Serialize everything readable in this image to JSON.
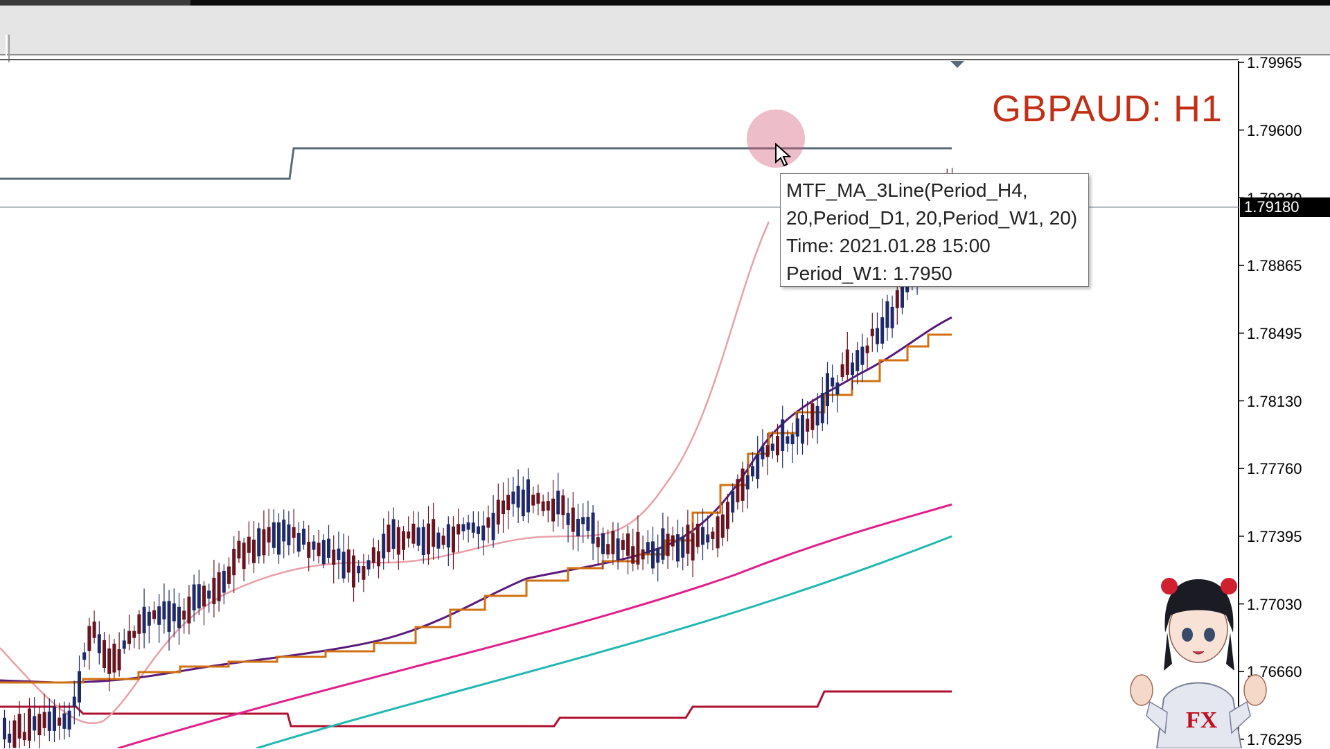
{
  "chart_title": "GBPAUD: H1",
  "price_axis": {
    "labels": [
      "1.79965",
      "1.79600",
      "1.79230",
      "1.78865",
      "1.78495",
      "1.78130",
      "1.77760",
      "1.77395",
      "1.77030",
      "1.76660",
      "1.76295"
    ],
    "current_price": "1.79180"
  },
  "tooltip": {
    "line1": "MTF_MA_3Line(Period_H4,",
    "line2": "20,Period_D1, 20,Period_W1, 20)",
    "line3": "Time: 2021.01.28 15:00",
    "line4": "Period_W1: 1.7950"
  },
  "colors": {
    "bull_candle": "#1e2a6a",
    "bear_candle": "#6a1420",
    "w1_line": "#5a6b78",
    "d1_line": "#b01030",
    "h4_line_orange": "#d07010",
    "ma_purple": "#5a1a7a",
    "ma_pink": "#e8a0a8",
    "ma_magenta": "#e0208a",
    "ma_teal": "#20b8b0",
    "title_red": "#c03018"
  },
  "icons": {
    "cursor": "arrow-cursor-icon",
    "mascot": "vtuber-mascot-icon"
  },
  "mascot_badge": "FX"
}
